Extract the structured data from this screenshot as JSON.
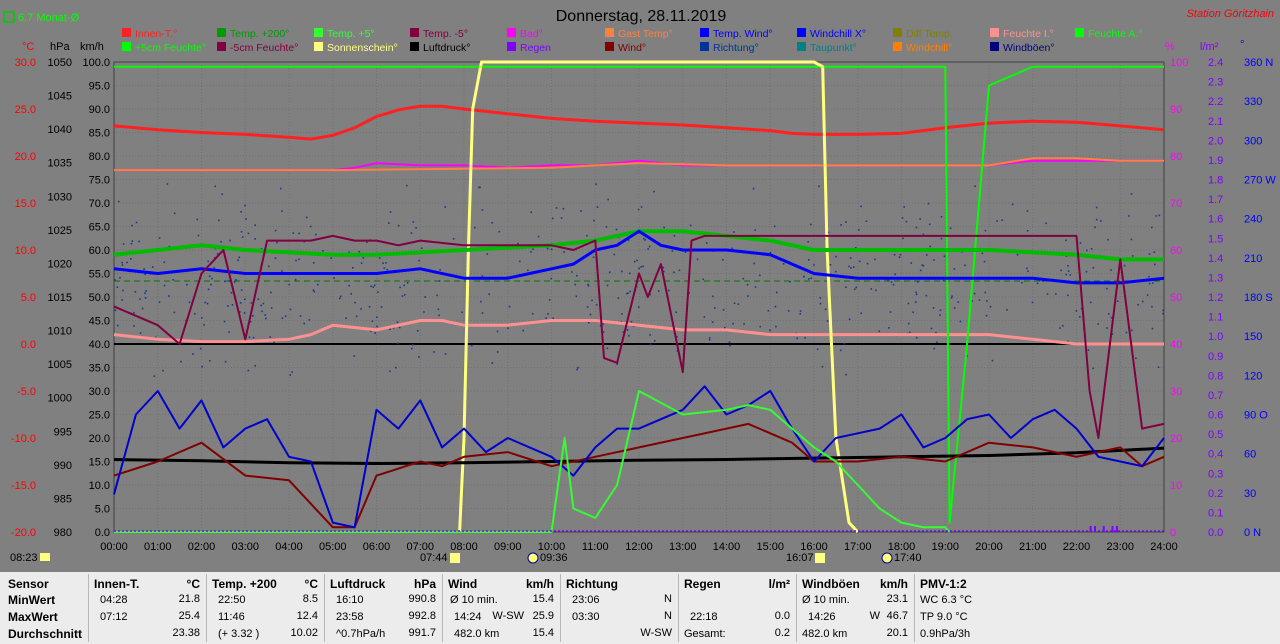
{
  "title": "Donnerstag, 28.11.2019",
  "station": "Station Göritzhain",
  "month_avg": "6.7 Monat-Ø",
  "legend": [
    {
      "label": "Innen-T.°",
      "color": "#ff2020"
    },
    {
      "label": "Temp. +200°",
      "color": "#009a00"
    },
    {
      "label": "Temp. +5°",
      "color": "#33ff33"
    },
    {
      "label": "Temp. -5°",
      "color": "#800040"
    },
    {
      "label": "Bad°",
      "color": "#ff00ff"
    },
    {
      "label": "Gast Temp°",
      "color": "#ff8040"
    },
    {
      "label": "Temp. Wind°",
      "color": "#0000ff"
    },
    {
      "label": "Windchill X°",
      "color": "#0000ff"
    },
    {
      "label": "Diff Temp.",
      "color": "#808000"
    },
    {
      "label": "Feuchte I.°",
      "color": "#ff9090"
    },
    {
      "label": "Feuchte A.°",
      "color": "#00ff00"
    },
    {
      "label": "+5cm Feuchte°",
      "color": "#00ff00"
    },
    {
      "label": "-5cm Feuchte°",
      "color": "#800040"
    },
    {
      "label": "Sonnenschein°",
      "color": "#ffff80"
    },
    {
      "label": "Luftdruck°",
      "color": "#000000"
    },
    {
      "label": "Regen",
      "color": "#8000ff"
    },
    {
      "label": "Wind°",
      "color": "#800000"
    },
    {
      "label": "Richtung°",
      "color": "#003399"
    },
    {
      "label": "Taupunkt°",
      "color": "#008080"
    },
    {
      "label": "Windchill°",
      "color": "#ff8000"
    },
    {
      "label": "Windböen°",
      "color": "#000080"
    }
  ],
  "axis_units": {
    "temp": "°C",
    "press": "hPa",
    "wind": "km/h",
    "hum": "%",
    "rain": "l/m²",
    "dir": "°"
  },
  "sun_markers": {
    "left": "08:23",
    "rise": "07:44",
    "noon": "09:36",
    "set": "16:07",
    "dusk": "17:40"
  },
  "chart_data": {
    "type": "line",
    "x_unit": "hour",
    "x_ticks": [
      "00:00",
      "01:00",
      "02:00",
      "03:00",
      "04:00",
      "05:00",
      "06:00",
      "07:00",
      "08:00",
      "09:00",
      "10:00",
      "11:00",
      "12:00",
      "13:00",
      "14:00",
      "15:00",
      "16:00",
      "17:00",
      "18:00",
      "19:00",
      "20:00",
      "21:00",
      "22:00",
      "23:00",
      "24:00"
    ],
    "y_temp": {
      "min": -20,
      "max": 30,
      "ticks": [
        "30.0",
        "25.0",
        "20.0",
        "15.0",
        "10.0",
        "5.0",
        "0.0",
        "-5.0",
        "-10.0",
        "-15.0",
        "-20.0"
      ]
    },
    "y_press": {
      "min": 980,
      "max": 1050,
      "ticks": [
        "1050",
        "1045",
        "1040",
        "1035",
        "1030",
        "1025",
        "1020",
        "1015",
        "1010",
        "1005",
        "1000",
        "995",
        "990",
        "985",
        "980"
      ]
    },
    "y_wind": {
      "min": 0,
      "max": 100,
      "ticks": [
        "100.0",
        "95.0",
        "90.0",
        "85.0",
        "80.0",
        "75.0",
        "70.0",
        "65.0",
        "60.0",
        "55.0",
        "50.0",
        "45.0",
        "40.0",
        "35.0",
        "30.0",
        "25.0",
        "20.0",
        "15.0",
        "10.0",
        "5.0",
        "0.0"
      ]
    },
    "y_hum": {
      "min": 0,
      "max": 100,
      "ticks": [
        "100",
        "90",
        "80",
        "70",
        "60",
        "50",
        "40",
        "30",
        "20",
        "10",
        "0"
      ]
    },
    "y_rain": {
      "min": 0,
      "max": 2.5,
      "ticks": [
        "2.4",
        "2.3",
        "2.2",
        "2.1",
        "2.0",
        "1.9",
        "1.8",
        "1.7",
        "1.6",
        "1.5",
        "1.4",
        "1.3",
        "1.2",
        "1.1",
        "1.0",
        "0.9",
        "0.8",
        "0.7",
        "0.6",
        "0.5",
        "0.4",
        "0.3",
        "0.2",
        "0.1",
        "0.0"
      ]
    },
    "y_dir": {
      "min": 0,
      "max": 360,
      "ticks": [
        "360 N",
        "330",
        "300",
        "270 W",
        "240",
        "210",
        "180 S",
        "150",
        "120",
        "90 O",
        "60",
        "30",
        "0 N"
      ]
    },
    "series": [
      {
        "name": "Innen-T.°",
        "axis": "temp",
        "color": "#ff2020",
        "width": 3,
        "x": [
          0,
          1,
          2,
          3,
          4,
          4.5,
          5,
          5.5,
          6,
          6.5,
          7,
          7.5,
          8,
          9,
          10,
          11,
          12,
          13,
          14,
          15,
          15.5,
          16,
          17,
          18,
          19,
          20,
          21,
          22,
          23,
          24
        ],
        "y": [
          23.2,
          22.8,
          22.5,
          22.3,
          22.0,
          21.8,
          22.2,
          23.0,
          24.2,
          24.9,
          25.3,
          25.3,
          25.0,
          24.5,
          24.0,
          23.7,
          23.5,
          23.3,
          23.0,
          22.7,
          22.4,
          22.3,
          22.3,
          22.4,
          23.0,
          23.5,
          23.7,
          23.6,
          23.2,
          22.8
        ]
      },
      {
        "name": "Feuchte I.°",
        "axis": "hum",
        "color": "#ff9090",
        "width": 3,
        "x": [
          0,
          1,
          2,
          3,
          4,
          4.5,
          5,
          6,
          7,
          7.5,
          8,
          9,
          10,
          11,
          12,
          13,
          14,
          15,
          16,
          17,
          18,
          19,
          20,
          21,
          22,
          23,
          24
        ],
        "y": [
          42,
          41,
          40.5,
          40.5,
          41,
          42,
          44,
          43,
          45,
          45,
          44,
          44,
          45,
          45,
          44,
          43,
          43,
          42,
          42,
          42,
          42,
          42,
          42,
          41,
          40,
          40,
          40
        ]
      },
      {
        "name": "Bad°",
        "axis": "hum",
        "color": "#ff00ff",
        "width": 2,
        "x": [
          0,
          5,
          5.5,
          6,
          7,
          8,
          9,
          10,
          11,
          12,
          13,
          14,
          15,
          16,
          17,
          18,
          19,
          20,
          21,
          22,
          23,
          24
        ],
        "y": [
          77,
          77,
          77.5,
          78.5,
          78,
          78,
          77.5,
          78,
          78,
          79,
          78,
          78,
          78,
          78,
          78,
          78,
          78,
          78,
          79,
          79,
          79,
          79
        ]
      },
      {
        "name": "Gast Temp°",
        "axis": "hum",
        "color": "#ff8040",
        "width": 2,
        "x": [
          0,
          5,
          10,
          12,
          14,
          16,
          18,
          20,
          21,
          22,
          23,
          24
        ],
        "y": [
          77,
          77,
          77.5,
          78.5,
          78,
          78,
          78,
          78,
          79.5,
          79.5,
          79,
          79
        ]
      },
      {
        "name": "Feuchte A.°",
        "axis": "hum",
        "color": "#00ff00",
        "width": 2,
        "x": [
          0,
          9.5,
          10,
          10.5,
          11,
          12,
          13,
          15,
          16,
          17,
          18,
          19,
          19.1,
          19.5,
          20,
          21,
          24
        ],
        "y": [
          99,
          99,
          99,
          99,
          99,
          99,
          99,
          99,
          99,
          99,
          99,
          99,
          2,
          40,
          95,
          99,
          99
        ]
      },
      {
        "name": "Sonnenschein°",
        "axis": "hum",
        "color": "#ffff80",
        "width": 3,
        "x": [
          7.9,
          8.0,
          8.1,
          8.2,
          8.4,
          8.6,
          9,
          10,
          11,
          12,
          13,
          14,
          15,
          16,
          16.2,
          16.3,
          16.5,
          16.8,
          17.0
        ],
        "y": [
          0,
          20,
          60,
          90,
          100,
          100,
          100,
          100,
          100,
          100,
          100,
          100,
          100,
          100,
          99,
          60,
          20,
          2,
          0
        ]
      },
      {
        "name": "Temp. +200°",
        "axis": "hum",
        "color": "#00bb00",
        "width": 4,
        "x": [
          0,
          1,
          2,
          3,
          4,
          5,
          6,
          7,
          8,
          9,
          10,
          11,
          12,
          13,
          14,
          15,
          16,
          17,
          18,
          19,
          20,
          21,
          22,
          23,
          24
        ],
        "y": [
          59,
          60,
          61,
          60,
          59.5,
          59,
          59,
          59.5,
          60,
          60.5,
          61,
          62,
          64,
          64,
          63,
          62,
          60,
          60,
          60,
          60,
          60,
          59.5,
          59,
          58,
          58
        ]
      },
      {
        "name": "Temp. Wind°",
        "axis": "hum",
        "color": "#0000ff",
        "width": 3,
        "x": [
          0,
          1,
          2,
          3,
          4,
          5,
          6,
          7,
          8,
          9,
          9.5,
          10,
          10.5,
          11,
          11.5,
          12,
          12.5,
          13,
          13.5,
          14,
          15,
          16,
          17,
          18,
          19,
          20,
          21,
          22,
          22.5,
          23,
          24
        ],
        "y": [
          56,
          55,
          56,
          55,
          55,
          55,
          55,
          56,
          54,
          54,
          55,
          56,
          57,
          60,
          61,
          64,
          61,
          60,
          60,
          60,
          59,
          55,
          54,
          54,
          54,
          54,
          54,
          53,
          53,
          53,
          54
        ]
      },
      {
        "name": "Temp. -5°",
        "axis": "hum",
        "color": "#800040",
        "width": 2,
        "x": [
          0,
          1,
          1.5,
          2,
          2.5,
          3,
          3.5,
          4,
          4.5,
          5,
          5.5,
          6,
          6.5,
          7,
          8,
          9,
          10,
          10.5,
          11,
          11.2,
          11.5,
          12,
          12.2,
          12.5,
          13,
          13.2,
          13.5,
          14,
          15,
          16,
          17,
          18,
          19,
          20,
          21,
          22,
          22.3,
          22.5,
          23,
          23.5,
          24
        ],
        "y": [
          48,
          44,
          40,
          55,
          60,
          41,
          62,
          62,
          62,
          63,
          62,
          62,
          61,
          62,
          61,
          61,
          61,
          60,
          62,
          37,
          36,
          55,
          50,
          57,
          34,
          62,
          63,
          63,
          63,
          63,
          63,
          63,
          63,
          63,
          63,
          63,
          30,
          20,
          58,
          22,
          23
        ]
      },
      {
        "name": "Luftdruck°",
        "axis": "press",
        "color": "#000000",
        "width": 3,
        "x": [
          0,
          2,
          4,
          6,
          8,
          10,
          12,
          14,
          16,
          18,
          20,
          22,
          24
        ],
        "y": [
          990.8,
          990.6,
          990.3,
          990.2,
          990.3,
          990.5,
          990.7,
          990.8,
          991.0,
          991.2,
          991.4,
          991.8,
          992.5
        ]
      },
      {
        "name": "Wind°",
        "axis": "wind",
        "color": "#800000",
        "width": 2,
        "x": [
          0,
          1,
          2,
          3,
          4,
          4.5,
          5,
          5.5,
          6,
          7,
          7.5,
          8,
          9,
          10,
          11,
          12,
          13,
          14,
          14.5,
          15,
          15.5,
          16,
          17,
          18,
          19,
          20,
          21,
          22,
          23,
          23.5,
          24
        ],
        "y": [
          12,
          15,
          19,
          12,
          11,
          6,
          1,
          1,
          12,
          15,
          14,
          16,
          17,
          14,
          16,
          18,
          20,
          22,
          23,
          21,
          19,
          15,
          15,
          16,
          15,
          19,
          18,
          16,
          18,
          14,
          16
        ]
      },
      {
        "name": "Windböen°",
        "axis": "wind",
        "color": "#0000cc",
        "width": 2,
        "x": [
          0,
          0.5,
          1,
          1.5,
          2,
          2.5,
          3,
          3.5,
          4,
          4.5,
          5,
          5.5,
          6,
          6.5,
          7,
          7.5,
          8,
          8.5,
          9,
          9.5,
          10,
          10.5,
          11,
          11.5,
          12,
          12.5,
          13,
          13.5,
          14,
          14.5,
          15,
          15.5,
          16,
          16.5,
          17,
          17.5,
          18,
          18.5,
          19,
          19.5,
          20,
          20.5,
          21,
          21.5,
          22,
          22.5,
          23,
          23.5,
          24
        ],
        "y": [
          8,
          25,
          30,
          22,
          28,
          18,
          22,
          24,
          16,
          15,
          2,
          1,
          26,
          22,
          28,
          18,
          22,
          17,
          20,
          18,
          16,
          12,
          18,
          22,
          22,
          24,
          26,
          31,
          25,
          27,
          30,
          22,
          15,
          20,
          21,
          22,
          25,
          18,
          20,
          24,
          25,
          20,
          24,
          26,
          22,
          16,
          15,
          14,
          20
        ]
      },
      {
        "name": "+5cm Feuchte°",
        "axis": "hum",
        "color": "#33ff33",
        "width": 2,
        "x": [
          0,
          10,
          10.3,
          10.5,
          11,
          11.5,
          12,
          13,
          14,
          14.5,
          15,
          15.5,
          16,
          16.5,
          17,
          17.5,
          18,
          18.5,
          19,
          19.1
        ],
        "y": [
          0,
          0,
          20,
          5,
          3,
          10,
          30,
          25,
          26,
          27,
          26,
          22,
          18,
          15,
          10,
          5,
          2,
          1,
          1,
          0
        ]
      },
      {
        "name": "Richtung°",
        "axis": "dir",
        "color": "#003399",
        "width": 0,
        "dots": true
      }
    ]
  },
  "stats": {
    "headers": {
      "sensor": "Sensor",
      "innen": "Innen-T.",
      "innen_u": "°C",
      "temp": "Temp. +200",
      "temp_u": "°C",
      "luft": "Luftdruck",
      "luft_u": "hPa",
      "wind": "Wind",
      "wind_u": "km/h",
      "richt": "Richtung",
      "regen": "Regen",
      "regen_u": "l/m²",
      "boeen": "Windböen",
      "boeen_u": "km/h",
      "pmv": "PMV-1:2"
    },
    "rows": {
      "min": "MinWert",
      "max": "MaxWert",
      "avg": "Durchschnitt"
    },
    "innen": {
      "min_t": "04:28",
      "min_v": "21.8",
      "max_t": "07:12",
      "max_v": "25.4",
      "avg_v": "23.38"
    },
    "temp": {
      "min_t": "22:50",
      "min_v": "8.5",
      "max_t": "11:46",
      "max_v": "12.4",
      "avg_t": "(+ 3.32 )",
      "avg_v": "10.02"
    },
    "luft": {
      "min_t": "16:10",
      "min_v": "990.8",
      "max_t": "23:58",
      "max_v": "992.8",
      "avg_t": "^0.7hPa/h",
      "avg_v": "991.7"
    },
    "wind": {
      "min_t": "Ø 10 min.",
      "min_v": "15.4",
      "max_t": "14:24",
      "max_d": "W-SW",
      "max_v": "25.9",
      "avg_t": "482.0 km",
      "avg_v": "15.4"
    },
    "richt": {
      "min_t": "23:06",
      "min_v": "N",
      "max_t": "03:30",
      "max_v": "N",
      "avg_v": "W-SW"
    },
    "regen": {
      "max_t": "22:18",
      "max_v": "0.0",
      "avg_t": "Gesamt:",
      "avg_v": "0.2"
    },
    "boeen": {
      "min_t": "Ø 10 min.",
      "min_v": "23.1",
      "max_t": "14:26",
      "max_d": "W",
      "max_v": "46.7",
      "avg_t": "482.0 km",
      "avg_v": "20.1"
    },
    "pmv": {
      "l1": "WC 6.3 °C",
      "l2": "TP 9.0 °C",
      "l3": "0.9hPa/3h"
    }
  }
}
